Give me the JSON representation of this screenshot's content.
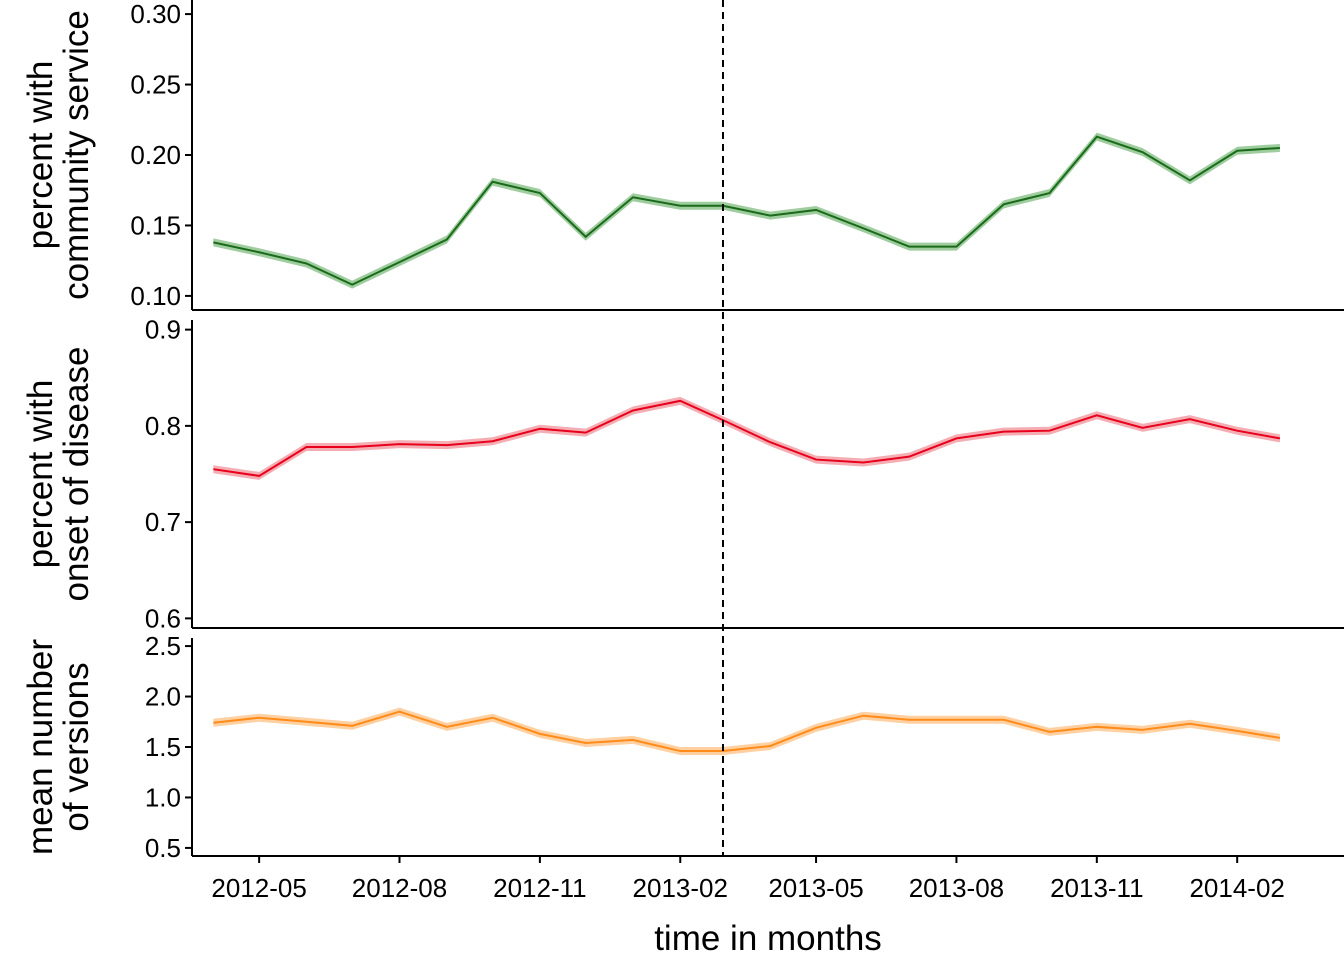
{
  "chart_data": [
    {
      "type": "line",
      "ylabel": [
        "percent with",
        "community service"
      ],
      "ylim": [
        0.09,
        0.31
      ],
      "yticks": [
        "0.10",
        "0.15",
        "0.20",
        "0.25",
        "0.30"
      ],
      "color": "#1a6b1a",
      "band_color": "#8fc48f",
      "x": [
        "2012-04",
        "2012-05",
        "2012-06",
        "2012-07",
        "2012-08",
        "2012-09",
        "2012-10",
        "2012-11",
        "2012-12",
        "2013-01",
        "2013-02",
        "2013-03",
        "2013-04",
        "2013-05",
        "2013-06",
        "2013-07",
        "2013-08",
        "2013-09",
        "2013-10",
        "2013-11",
        "2013-12",
        "2014-01",
        "2014-02",
        "2014-03"
      ],
      "values": [
        0.138,
        0.131,
        0.123,
        0.108,
        0.124,
        0.14,
        0.181,
        0.173,
        0.142,
        0.17,
        0.164,
        0.164,
        0.157,
        0.161,
        0.148,
        0.135,
        0.135,
        0.165,
        0.173,
        0.213,
        0.202,
        0.182,
        0.203,
        0.205
      ]
    },
    {
      "type": "line",
      "ylabel": [
        "percent with",
        "onset of disease"
      ],
      "ylim": [
        0.59,
        0.91
      ],
      "yticks": [
        "0.6",
        "0.7",
        "0.8",
        "0.9"
      ],
      "color": "#e8001c",
      "band_color": "#f2a0a6",
      "x": [
        "2012-04",
        "2012-05",
        "2012-06",
        "2012-07",
        "2012-08",
        "2012-09",
        "2012-10",
        "2012-11",
        "2012-12",
        "2013-01",
        "2013-02",
        "2013-03",
        "2013-04",
        "2013-05",
        "2013-06",
        "2013-07",
        "2013-08",
        "2013-09",
        "2013-10",
        "2013-11",
        "2013-12",
        "2014-01",
        "2014-02",
        "2014-03"
      ],
      "values": [
        0.755,
        0.748,
        0.778,
        0.778,
        0.781,
        0.78,
        0.784,
        0.797,
        0.793,
        0.816,
        0.826,
        0.806,
        0.783,
        0.765,
        0.762,
        0.768,
        0.787,
        0.794,
        0.795,
        0.811,
        0.798,
        0.807,
        0.795,
        0.787
      ]
    },
    {
      "type": "line",
      "ylabel": [
        "mean number",
        "of versions"
      ],
      "ylim": [
        0.42,
        2.58
      ],
      "yticks": [
        "0.5",
        "1.0",
        "1.5",
        "2.0",
        "2.5"
      ],
      "color": "#ff8c1a",
      "band_color": "#ffc890",
      "x": [
        "2012-04",
        "2012-05",
        "2012-06",
        "2012-07",
        "2012-08",
        "2012-09",
        "2012-10",
        "2012-11",
        "2012-12",
        "2013-01",
        "2013-02",
        "2013-03",
        "2013-04",
        "2013-05",
        "2013-06",
        "2013-07",
        "2013-08",
        "2013-09",
        "2013-10",
        "2013-11",
        "2013-12",
        "2014-01",
        "2014-02",
        "2014-03"
      ],
      "values": [
        1.74,
        1.79,
        1.75,
        1.71,
        1.85,
        1.7,
        1.79,
        1.63,
        1.54,
        1.57,
        1.46,
        1.46,
        1.51,
        1.69,
        1.81,
        1.77,
        1.77,
        1.77,
        1.65,
        1.7,
        1.67,
        1.73,
        1.66,
        1.59
      ]
    }
  ],
  "x_axis": {
    "label": "time in months",
    "tick_labels": [
      "2012-05",
      "2012-08",
      "2012-11",
      "2013-02",
      "2013-05",
      "2013-08",
      "2013-11",
      "2014-02"
    ],
    "tick_months": [
      "2012-05",
      "2012-08",
      "2012-11",
      "2013-02",
      "2013-05",
      "2013-08",
      "2013-11",
      "2014-02"
    ],
    "range": [
      "2012-03-18",
      "2014-04-12"
    ]
  },
  "reference_line": {
    "date": "2013-03-01",
    "style": "dashed"
  }
}
